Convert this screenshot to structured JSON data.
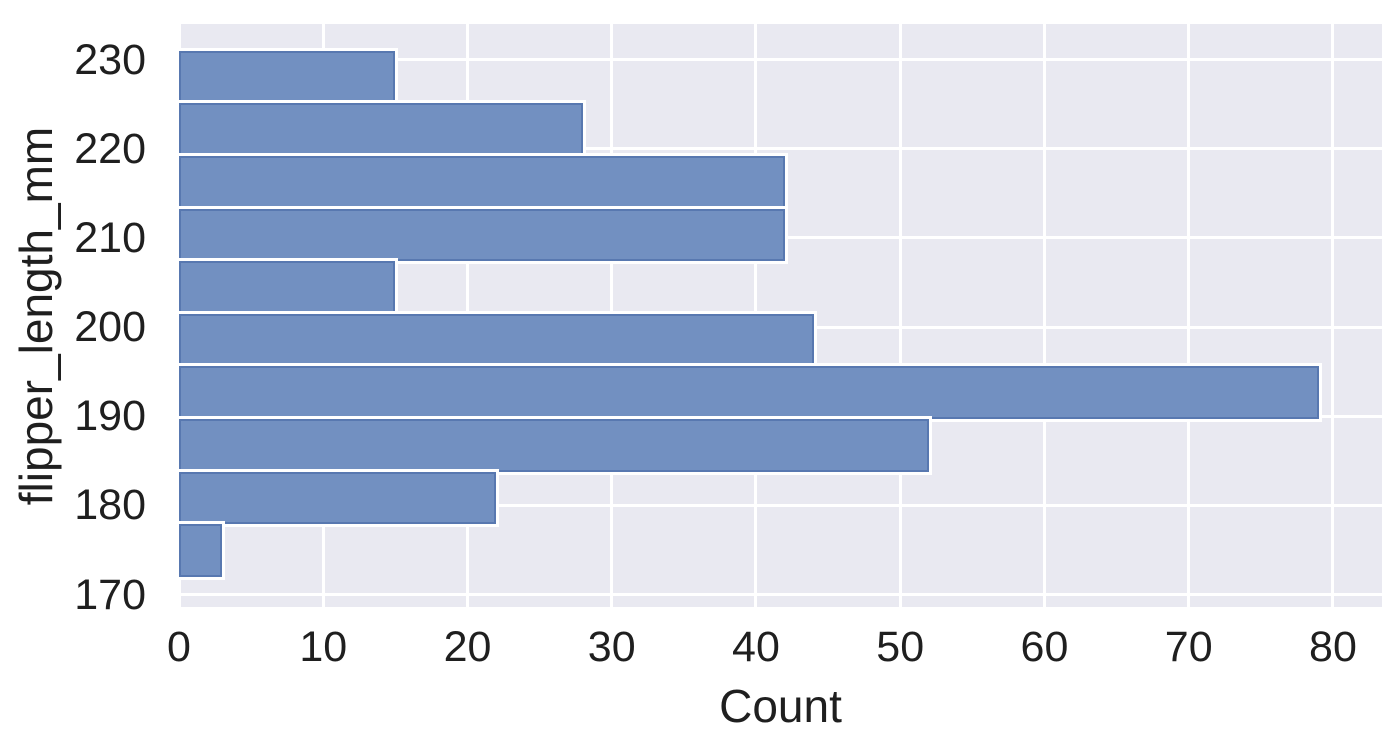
{
  "chart_data": {
    "type": "bar",
    "subtype": "histogram",
    "orientation": "horizontal",
    "title": "",
    "xlabel": "Count",
    "ylabel": "flipper_length_mm",
    "bin_edges": [
      172.0,
      177.9,
      183.8,
      189.7,
      195.6,
      201.5,
      207.4,
      213.3,
      219.2,
      225.1,
      231.0
    ],
    "counts": [
      3,
      22,
      52,
      79,
      44,
      15,
      42,
      42,
      28,
      15
    ],
    "x_ticks": [
      0,
      10,
      20,
      30,
      40,
      50,
      60,
      70,
      80
    ],
    "y_ticks": [
      170,
      180,
      190,
      200,
      210,
      220,
      230
    ],
    "xlim": [
      0,
      83.4
    ],
    "ylim": [
      168.6,
      234.0
    ],
    "grid": true,
    "legend": false,
    "colors": {
      "bar_fill": "#7290c1",
      "bar_edge": "#5878b0",
      "bar_outline": "#ffffff",
      "plot_background": "#e9e9f1",
      "gridline": "#ffffff",
      "text": "#1f1f1f",
      "figure_background": "#ffffff"
    }
  }
}
